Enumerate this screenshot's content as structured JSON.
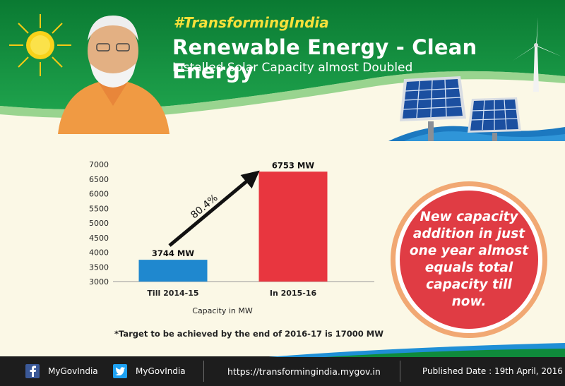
{
  "header": {
    "hashtag": "#TransformingIndia",
    "title": "Renewable Energy - Clean Energy",
    "subtitle": "Installed Solar Capacity almost Doubled"
  },
  "chart_data": {
    "type": "bar",
    "categories": [
      "Till 2014-15",
      "In 2015-16"
    ],
    "values": [
      3744,
      6753
    ],
    "data_labels": [
      "3744 MW",
      "6753 MW"
    ],
    "bar_colors": [
      "#1f88cf",
      "#e8363f"
    ],
    "xlabel": "Capacity in MW",
    "ylim": [
      3000,
      7000
    ],
    "yticks": [
      3000,
      3500,
      4000,
      4500,
      5000,
      5500,
      6000,
      6500,
      7000
    ],
    "grid": false,
    "annotation": {
      "text": "80.4%",
      "type": "growth-arrow"
    }
  },
  "note": "*Target to be achieved by the end of 2016-17 is 17000 MW",
  "callout": {
    "text": "New capacity addition in just one year almost equals total capacity till now."
  },
  "footer": {
    "facebook": "MyGovIndia",
    "twitter": "MyGovIndia",
    "url": "https://transformingindia.mygov.in",
    "published": "Published Date : 19th April, 2016"
  },
  "colors": {
    "banner_green": "#0f8a3b",
    "accent_red": "#e03c44",
    "accent_yellow": "#f6e03a",
    "footer_dark": "#1d1d1d"
  },
  "icons": [
    "sun-icon",
    "portrait-image",
    "wind-turbine-icon",
    "solar-panel-icon",
    "facebook-icon",
    "twitter-icon"
  ]
}
